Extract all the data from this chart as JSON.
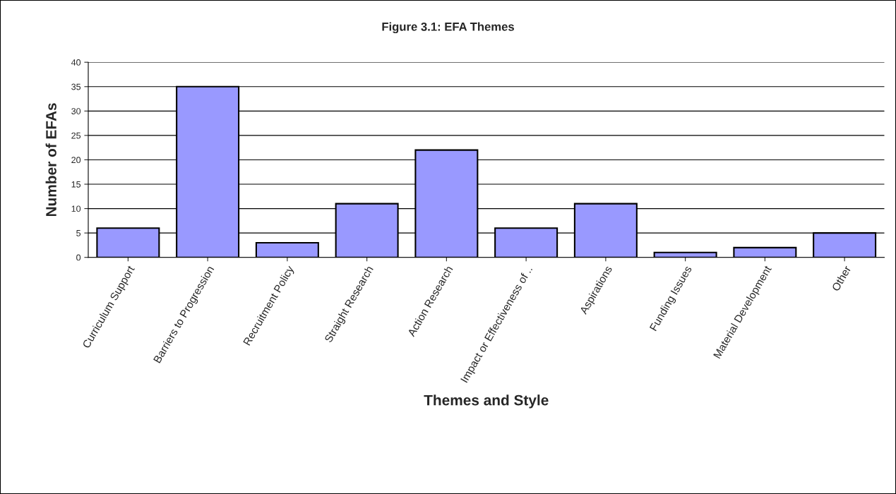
{
  "chart_data": {
    "type": "bar",
    "title": "Figure 3.1: EFA Themes",
    "xlabel": "Themes and Style",
    "ylabel": "Number of EFAs",
    "categories": [
      "Curriculum Support",
      "Barriers to Progression",
      "Recruitment Policy",
      "Straight Research",
      "Action Research",
      "Impact or Effectiveness of ..",
      "Aspirations",
      "Funding Issues",
      "Material Development",
      "Other"
    ],
    "values": [
      6,
      35,
      3,
      11,
      22,
      6,
      11,
      1,
      2,
      5
    ],
    "color": "#9999ff",
    "ylim": [
      0,
      40
    ],
    "yticks": [
      0,
      5,
      10,
      15,
      20,
      25,
      30,
      35,
      40
    ],
    "grid": "y"
  }
}
